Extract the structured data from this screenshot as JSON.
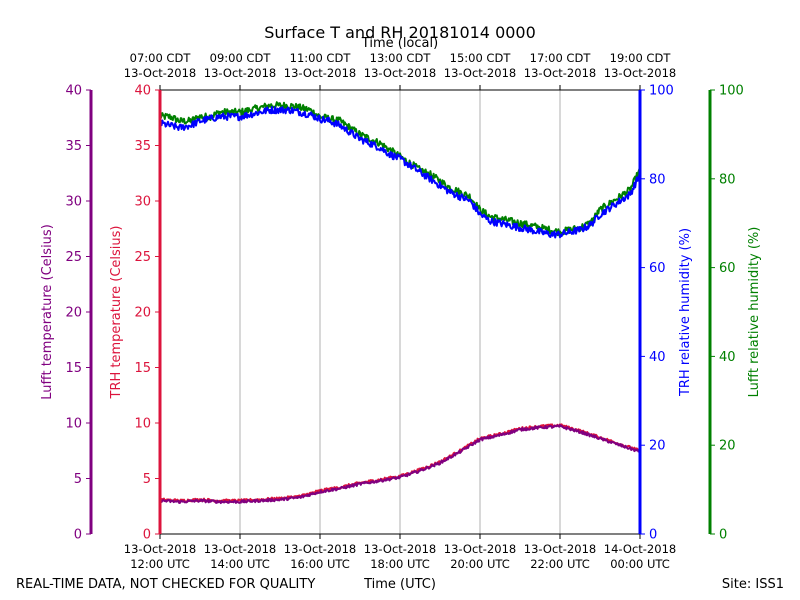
{
  "chart_data": {
    "type": "line",
    "title": "Surface T and RH 20181014 0000",
    "top_xlabel": "Time (local)",
    "xlabel": "Time (UTC)",
    "footer_left": "REAL-TIME DATA, NOT CHECKED FOR QUALITY",
    "footer_right": "Site: ISS1",
    "x_range_hours_utc": [
      12,
      24
    ],
    "grid": true,
    "top_ticks": [
      {
        "h": 12,
        "line1": "07:00 CDT",
        "line2": "13-Oct-2018"
      },
      {
        "h": 14,
        "line1": "09:00 CDT",
        "line2": "13-Oct-2018"
      },
      {
        "h": 16,
        "line1": "11:00 CDT",
        "line2": "13-Oct-2018"
      },
      {
        "h": 18,
        "line1": "13:00 CDT",
        "line2": "13-Oct-2018"
      },
      {
        "h": 20,
        "line1": "15:00 CDT",
        "line2": "13-Oct-2018"
      },
      {
        "h": 22,
        "line1": "17:00 CDT",
        "line2": "13-Oct-2018"
      },
      {
        "h": 24,
        "line1": "19:00 CDT",
        "line2": "13-Oct-2018"
      }
    ],
    "bottom_ticks": [
      {
        "h": 12,
        "line1": "13-Oct-2018",
        "line2": "12:00 UTC"
      },
      {
        "h": 14,
        "line1": "13-Oct-2018",
        "line2": "14:00 UTC"
      },
      {
        "h": 16,
        "line1": "13-Oct-2018",
        "line2": "16:00 UTC"
      },
      {
        "h": 18,
        "line1": "13-Oct-2018",
        "line2": "18:00 UTC"
      },
      {
        "h": 20,
        "line1": "13-Oct-2018",
        "line2": "20:00 UTC"
      },
      {
        "h": 22,
        "line1": "13-Oct-2018",
        "line2": "22:00 UTC"
      },
      {
        "h": 24,
        "line1": "14-Oct-2018",
        "line2": "00:00 UTC"
      }
    ],
    "axes": {
      "lufft_temp": {
        "label": "Lufft temperature (Celsius)",
        "ylim": [
          0,
          40
        ],
        "ticks": [
          0,
          5,
          10,
          15,
          20,
          25,
          30,
          35,
          40
        ],
        "color": "#800080"
      },
      "trh_temp": {
        "label": "TRH temperature (Celsius)",
        "ylim": [
          0,
          40
        ],
        "ticks": [
          0,
          5,
          10,
          15,
          20,
          25,
          30,
          35,
          40
        ],
        "color": "#dc143c"
      },
      "trh_rh": {
        "label": "TRH relative humidity (%)",
        "ylim": [
          0,
          100
        ],
        "ticks": [
          0,
          20,
          40,
          60,
          80,
          100
        ],
        "color": "#0000ff"
      },
      "lufft_rh": {
        "label": "Lufft relative humidity (%)",
        "ylim": [
          0,
          100
        ],
        "ticks": [
          0,
          20,
          40,
          60,
          80,
          100
        ],
        "color": "#008000"
      }
    },
    "series": [
      {
        "axis": "lufft_rh",
        "color": "#008000",
        "noise": 0.8,
        "x": [
          12.0,
          12.25,
          12.5,
          12.75,
          13.0,
          13.25,
          13.5,
          13.75,
          14.0,
          14.25,
          14.5,
          14.75,
          15.0,
          15.25,
          15.5,
          15.75,
          16.0,
          16.25,
          16.5,
          16.75,
          17.0,
          17.25,
          17.5,
          17.75,
          18.0,
          18.25,
          18.5,
          18.75,
          19.0,
          19.25,
          19.5,
          19.75,
          20.0,
          20.25,
          20.5,
          20.75,
          21.0,
          21.25,
          21.5,
          21.75,
          22.0,
          22.25,
          22.5,
          22.75,
          23.0,
          23.25,
          23.5,
          23.75,
          24.0
        ],
        "y": [
          94,
          94,
          93,
          93,
          94,
          94,
          95,
          95,
          95,
          95.5,
          96,
          96.5,
          96.5,
          96.5,
          96,
          95.5,
          94,
          93.5,
          93,
          91.5,
          90,
          89,
          88,
          86.5,
          85,
          83.5,
          82,
          81,
          79.5,
          78,
          77,
          76,
          73,
          71.5,
          71,
          70.5,
          70,
          69.5,
          69,
          68.5,
          68,
          68.5,
          69,
          70,
          73,
          74.5,
          76,
          77.5,
          82
        ]
      },
      {
        "axis": "trh_rh",
        "color": "#0000ff",
        "noise": 0.8,
        "x": [
          12.0,
          12.25,
          12.5,
          12.75,
          13.0,
          13.25,
          13.5,
          13.75,
          14.0,
          14.25,
          14.5,
          14.75,
          15.0,
          15.25,
          15.5,
          15.75,
          16.0,
          16.25,
          16.5,
          16.75,
          17.0,
          17.25,
          17.5,
          17.75,
          18.0,
          18.25,
          18.5,
          18.75,
          19.0,
          19.25,
          19.5,
          19.75,
          20.0,
          20.25,
          20.5,
          20.75,
          21.0,
          21.25,
          21.5,
          21.75,
          22.0,
          22.25,
          22.5,
          22.75,
          23.0,
          23.25,
          23.5,
          23.75,
          24.0
        ],
        "y": [
          92.5,
          92,
          91.5,
          92,
          93,
          93.5,
          94,
          94,
          94,
          94.5,
          95,
          95.5,
          95.5,
          95.5,
          95,
          94.5,
          93.5,
          93,
          92,
          90.5,
          89,
          88,
          87,
          85.5,
          84.5,
          83,
          81.5,
          80,
          78.5,
          77,
          76,
          75,
          72,
          70.5,
          70,
          69.5,
          69,
          68.5,
          68,
          67.5,
          67.5,
          68,
          68.5,
          69.5,
          72,
          73.5,
          75,
          76.5,
          81
        ]
      },
      {
        "axis": "trh_temp",
        "color": "#dc143c",
        "noise": 0.12,
        "x": [
          12.0,
          12.5,
          13.0,
          13.5,
          14.0,
          14.5,
          15.0,
          15.5,
          16.0,
          16.5,
          17.0,
          17.5,
          18.0,
          18.5,
          19.0,
          19.5,
          20.0,
          20.5,
          21.0,
          21.5,
          22.0,
          22.5,
          23.0,
          23.5,
          24.0
        ],
        "y": [
          3.1,
          3.0,
          3.1,
          3.0,
          3.0,
          3.1,
          3.2,
          3.4,
          3.9,
          4.2,
          4.6,
          4.9,
          5.2,
          5.8,
          6.5,
          7.5,
          8.6,
          9.0,
          9.5,
          9.7,
          9.8,
          9.3,
          8.7,
          8.1,
          7.5
        ]
      },
      {
        "axis": "lufft_temp",
        "color": "#800080",
        "noise": 0.12,
        "x": [
          12.0,
          12.5,
          13.0,
          13.5,
          14.0,
          14.5,
          15.0,
          15.5,
          16.0,
          16.5,
          17.0,
          17.5,
          18.0,
          18.5,
          19.0,
          19.5,
          20.0,
          20.5,
          21.0,
          21.5,
          22.0,
          22.5,
          23.0,
          23.5,
          24.0
        ],
        "y": [
          3.0,
          2.9,
          3.0,
          2.9,
          2.9,
          3.0,
          3.1,
          3.3,
          3.8,
          4.1,
          4.5,
          4.8,
          5.1,
          5.7,
          6.4,
          7.4,
          8.5,
          8.9,
          9.4,
          9.6,
          9.7,
          9.2,
          8.6,
          8.0,
          7.4
        ]
      }
    ]
  }
}
